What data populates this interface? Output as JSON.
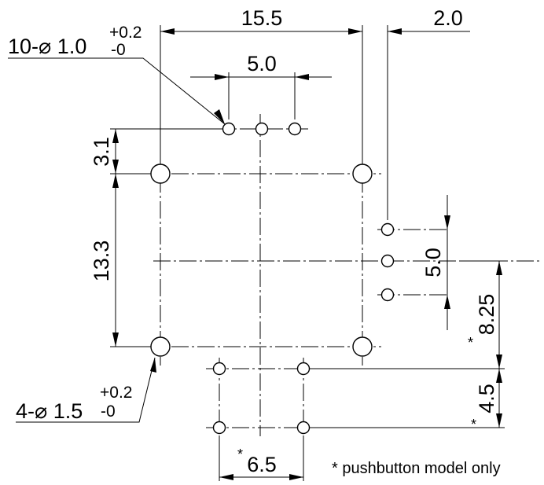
{
  "dimensions": {
    "width_top": "15.5",
    "offset_right": "2.0",
    "pitch_small_top": "5.0",
    "offset_top_holes": "3.1",
    "height_main": "13.3",
    "pitch_small_right": "5.0",
    "pushbutton_offset": "8.25",
    "pushbutton_pitch_v": "4.5",
    "pushbutton_pitch_h": "6.5"
  },
  "callouts": {
    "small_holes": {
      "count_prefix": "10-",
      "diameter_symbol": "⌀",
      "diameter": " 1.0",
      "tol_upper": "+0.2",
      "tol_lower": "-0"
    },
    "large_holes": {
      "count_prefix": "4-",
      "diameter_symbol": "⌀",
      "diameter": " 1.5",
      "tol_upper": "+0.2",
      "tol_lower": "-0"
    }
  },
  "marks": {
    "asterisk": "*"
  },
  "footnote": "* pushbutton model only"
}
